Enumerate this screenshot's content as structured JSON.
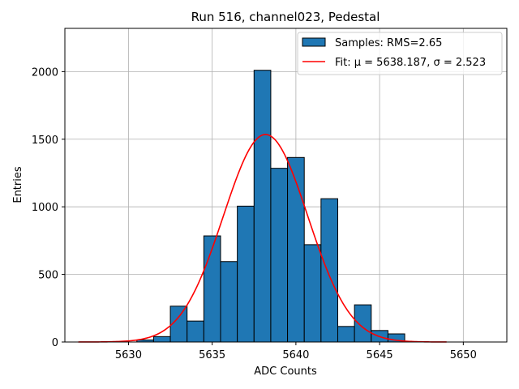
{
  "chart_data": {
    "type": "bar",
    "title": "Run 516, channel023, Pedestal",
    "xlabel": "ADC Counts",
    "ylabel": "Entries",
    "xlim": [
      5626.2,
      5652.6
    ],
    "ylim": [
      0,
      2320
    ],
    "grid": true,
    "bin_width": 1,
    "bin_edges": [
      5630.5,
      5631.5,
      5632.5,
      5633.5,
      5634.5,
      5635.5,
      5636.5,
      5637.5,
      5638.5,
      5639.5,
      5640.5,
      5641.5,
      5642.5,
      5643.5,
      5644.5,
      5645.5
    ],
    "values": [
      15,
      40,
      265,
      155,
      785,
      595,
      1005,
      2010,
      1285,
      1365,
      720,
      1060,
      115,
      275,
      85,
      60
    ],
    "x_ticks": [
      5630,
      5635,
      5640,
      5645,
      5650
    ],
    "x_tick_labels": [
      "5630",
      "5635",
      "5640",
      "5645",
      "5650"
    ],
    "y_ticks": [
      0,
      500,
      1000,
      1500,
      2000
    ],
    "y_tick_labels": [
      "0",
      "500",
      "1000",
      "1500",
      "2000"
    ],
    "fit": {
      "function": "gaussian",
      "amplitude": 1535,
      "mu": 5638.187,
      "sigma": 2.523,
      "x_range": [
        5627,
        5649
      ]
    },
    "bar_color": "#1f77b4",
    "bar_edge_color": "#000000",
    "fit_color": "#ff0000",
    "legend": {
      "position": "top-right",
      "entries": [
        {
          "label": "Samples: RMS=2.65",
          "type": "patch",
          "color": "#1f77b4"
        },
        {
          "label": "Fit: μ = 5638.187, σ = 2.523",
          "type": "line",
          "color": "#ff0000"
        }
      ]
    }
  }
}
